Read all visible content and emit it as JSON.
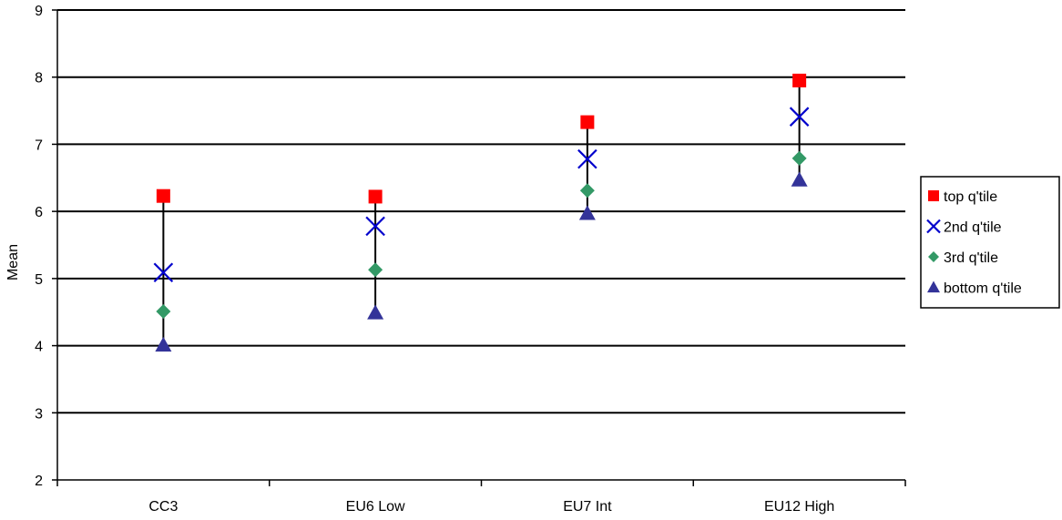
{
  "chart_data": {
    "type": "scatter",
    "title": "",
    "xlabel": "",
    "ylabel": "Mean",
    "ylim": [
      2,
      9
    ],
    "yticks": [
      2,
      3,
      4,
      5,
      6,
      7,
      8,
      9
    ],
    "grid": "horizontal",
    "legend_position": "right",
    "categories": [
      "CC3",
      "EU6 Low",
      "EU7 Int",
      "EU12 High"
    ],
    "series": [
      {
        "name": "top q'tile",
        "marker": "square",
        "color": "#ff0000",
        "values": [
          6.23,
          6.22,
          7.33,
          7.95
        ]
      },
      {
        "name": "2nd q'tile",
        "marker": "x",
        "color": "#0000cc",
        "values": [
          5.09,
          5.78,
          6.78,
          7.41
        ]
      },
      {
        "name": "3rd q'tile",
        "marker": "diamond",
        "color": "#339966",
        "values": [
          4.51,
          5.13,
          6.31,
          6.79
        ]
      },
      {
        "name": "bottom q'tile",
        "marker": "triangle",
        "color": "#333399",
        "values": [
          4.01,
          4.49,
          5.97,
          6.47
        ]
      }
    ]
  }
}
